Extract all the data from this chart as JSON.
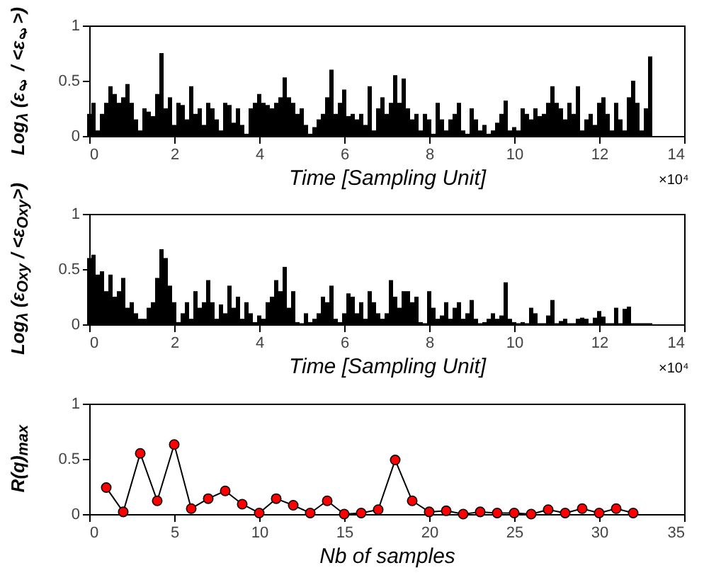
{
  "chart_data": [
    {
      "type": "bar",
      "xlabel": "Time [Sampling Unit]",
      "ylabel": "Log$_{λ}$ (ε$_{ℓ}$ / <ε$_{ℓ}$>)",
      "annotations": [
        "×10⁴"
      ],
      "xlim": [
        0,
        14
      ],
      "xticks": [
        0,
        2,
        4,
        6,
        8,
        10,
        12,
        14
      ],
      "ylim": [
        0,
        1
      ],
      "yticks": [
        0,
        0.5,
        1
      ],
      "grid": false,
      "x": [
        0,
        0.1,
        0.2,
        0.3,
        0.4,
        0.5,
        0.6,
        0.7,
        0.8,
        0.9,
        1,
        1.1,
        1.2,
        1.3,
        1.4,
        1.5,
        1.6,
        1.7,
        1.8,
        1.9,
        2,
        2.1,
        2.2,
        2.3,
        2.4,
        2.5,
        2.6,
        2.7,
        2.8,
        2.9,
        3,
        3.1,
        3.2,
        3.3,
        3.4,
        3.5,
        3.6,
        3.7,
        3.8,
        3.9,
        4,
        4.1,
        4.2,
        4.3,
        4.4,
        4.5,
        4.6,
        4.7,
        4.8,
        4.9,
        5,
        5.1,
        5.2,
        5.3,
        5.4,
        5.5,
        5.6,
        5.7,
        5.8,
        5.9,
        6,
        6.1,
        6.2,
        6.3,
        6.4,
        6.5,
        6.6,
        6.7,
        6.8,
        6.9,
        7,
        7.1,
        7.2,
        7.3,
        7.4,
        7.5,
        7.6,
        7.7,
        7.8,
        7.9,
        8,
        8.1,
        8.2,
        8.3,
        8.4,
        8.5,
        8.6,
        8.7,
        8.8,
        8.9,
        9,
        9.1,
        9.2,
        9.3,
        9.4,
        9.5,
        9.6,
        9.7,
        9.8,
        9.9,
        10,
        10.1,
        10.2,
        10.3,
        10.4,
        10.5,
        10.6,
        10.7,
        10.8,
        10.9,
        11,
        11.1,
        11.2,
        11.3,
        11.4,
        11.5,
        11.6,
        11.7,
        11.8,
        11.9,
        12,
        12.1,
        12.2,
        12.3,
        12.4,
        12.5,
        12.6,
        12.7,
        12.8,
        12.9,
        13,
        13.1,
        13.2
      ],
      "series": [
        {
          "color": "#000000",
          "values": [
            0.2,
            0.3,
            0.05,
            0.2,
            0.3,
            0.45,
            0.38,
            0.3,
            0.35,
            0.47,
            0.3,
            0.15,
            0.05,
            0.25,
            0.22,
            0.18,
            0.38,
            0.75,
            0.25,
            0.35,
            0.1,
            0.3,
            0.28,
            0.15,
            0.45,
            0.2,
            0.25,
            0.1,
            0.3,
            0.25,
            0.15,
            0.05,
            0.3,
            0.28,
            0.12,
            0.25,
            0.1,
            0.02,
            0.25,
            0.3,
            0.38,
            0.3,
            0.28,
            0.25,
            0.3,
            0.35,
            0.53,
            0.35,
            0.3,
            0.2,
            0.25,
            0.1,
            0.02,
            0.08,
            0.15,
            0.2,
            0.35,
            0.6,
            0.2,
            0.3,
            0.42,
            0.18,
            0.2,
            0.15,
            0.2,
            0.1,
            0.45,
            0.05,
            0.25,
            0.35,
            0.2,
            0.3,
            0.55,
            0.3,
            0.52,
            0.25,
            0.15,
            0.2,
            0.05,
            0.2,
            0.15,
            0.02,
            0.3,
            0.15,
            0.05,
            0.15,
            0.2,
            0.3,
            0.05,
            0.02,
            0.25,
            0.15,
            0.05,
            0.1,
            0.02,
            0.05,
            0.12,
            0.2,
            0.32,
            0.05,
            0.08,
            0.05,
            0.25,
            0.2,
            0.15,
            0.25,
            0.18,
            0.2,
            0.3,
            0.45,
            0.3,
            0.25,
            0.15,
            0.3,
            0.2,
            0.45,
            0.05,
            0.15,
            0.2,
            0.1,
            0.3,
            0.35,
            0.2,
            0.05,
            0.3,
            0.15,
            0.05,
            0.35,
            0.5,
            0.3,
            0.05,
            0.25,
            0.72
          ]
        }
      ]
    },
    {
      "type": "bar",
      "xlabel": "Time [Sampling Unit]",
      "ylabel": "Log$_{λ}$ (ε$_{Oxy}$ / <ε$_{Oxy}$>)",
      "annotations": [
        "×10⁴"
      ],
      "xlim": [
        0,
        14
      ],
      "xticks": [
        0,
        2,
        4,
        6,
        8,
        10,
        12,
        14
      ],
      "ylim": [
        0,
        1
      ],
      "yticks": [
        0,
        0.5,
        1
      ],
      "grid": false,
      "x": [
        0,
        0.1,
        0.2,
        0.3,
        0.4,
        0.5,
        0.6,
        0.7,
        0.8,
        0.9,
        1,
        1.1,
        1.2,
        1.3,
        1.4,
        1.5,
        1.6,
        1.7,
        1.8,
        1.9,
        2,
        2.1,
        2.2,
        2.3,
        2.4,
        2.5,
        2.6,
        2.7,
        2.8,
        2.9,
        3,
        3.1,
        3.2,
        3.3,
        3.4,
        3.5,
        3.6,
        3.7,
        3.8,
        3.9,
        4,
        4.1,
        4.2,
        4.3,
        4.4,
        4.5,
        4.6,
        4.7,
        4.8,
        4.9,
        5,
        5.1,
        5.2,
        5.3,
        5.4,
        5.5,
        5.6,
        5.7,
        5.8,
        5.9,
        6,
        6.1,
        6.2,
        6.3,
        6.4,
        6.5,
        6.6,
        6.7,
        6.8,
        6.9,
        7,
        7.1,
        7.2,
        7.3,
        7.4,
        7.5,
        7.6,
        7.7,
        7.8,
        7.9,
        8,
        8.1,
        8.2,
        8.3,
        8.4,
        8.5,
        8.6,
        8.7,
        8.8,
        8.9,
        9,
        9.1,
        9.2,
        9.3,
        9.4,
        9.5,
        9.6,
        9.7,
        9.8,
        9.9,
        10,
        10.1,
        10.2,
        10.3,
        10.4,
        10.5,
        10.6,
        10.7,
        10.8,
        10.9,
        11,
        11.1,
        11.2,
        11.3,
        11.4,
        11.5,
        11.6,
        11.7,
        11.8,
        11.9,
        12,
        12.1,
        12.2,
        12.3,
        12.4,
        12.5,
        12.6,
        12.7,
        12.8,
        12.9,
        13,
        13.1,
        13.2
      ],
      "series": [
        {
          "color": "#000000",
          "values": [
            0.6,
            0.63,
            0.45,
            0.48,
            0.3,
            0.45,
            0.25,
            0.3,
            0.42,
            0.15,
            0.2,
            0.1,
            0.05,
            0.05,
            0.15,
            0.2,
            0.42,
            0.68,
            0.6,
            0.35,
            0.2,
            0.02,
            0.1,
            0.2,
            0.05,
            0.3,
            0.15,
            0.2,
            0.4,
            0.2,
            0.05,
            0.18,
            0.1,
            0.35,
            0.15,
            0.25,
            0.05,
            0.2,
            0.1,
            0.02,
            0.08,
            0.05,
            0.2,
            0.25,
            0.4,
            0.3,
            0.52,
            0.15,
            0.3,
            0.02,
            0.01,
            0.1,
            0.02,
            0.05,
            0.1,
            0.25,
            0.2,
            0.35,
            0.05,
            0.02,
            0.1,
            0.28,
            0.25,
            0.1,
            0.2,
            0.05,
            0.3,
            0.2,
            0.1,
            0.05,
            0.1,
            0.4,
            0.25,
            0.15,
            0.3,
            0.3,
            0.2,
            0.25,
            0.02,
            0.01,
            0.3,
            0.15,
            0.05,
            0.08,
            0.2,
            0.05,
            0.15,
            0.2,
            0.05,
            0.1,
            0.22,
            0.05,
            0.01,
            0.02,
            0.05,
            0.1,
            0.05,
            0.08,
            0.38,
            0.05,
            0.02,
            0.01,
            0.02,
            0.01,
            0.15,
            0.1,
            0.01,
            0.01,
            0.08,
            0.22,
            0.01,
            0.03,
            0.05,
            0.01,
            0.01,
            0.05,
            0.06,
            0.05,
            0.01,
            0.06,
            0.12,
            0.07,
            0.01,
            0.01,
            0.15,
            0.01,
            0.14,
            0.16,
            0.01,
            0.01,
            0.01,
            0.01,
            0.01
          ]
        }
      ]
    },
    {
      "type": "line",
      "xlabel": "Nb of samples",
      "ylabel": "R(q)$_{max}$",
      "xlim": [
        0,
        35
      ],
      "xticks": [
        0,
        5,
        10,
        15,
        20,
        25,
        30,
        35
      ],
      "ylim": [
        0,
        1
      ],
      "yticks": [
        0,
        0.5,
        1
      ],
      "grid": false,
      "marker": "circle",
      "line_style": "solid",
      "x": [
        1,
        2,
        3,
        4,
        5,
        6,
        7,
        8,
        9,
        10,
        11,
        12,
        13,
        14,
        15,
        16,
        17,
        18,
        19,
        20,
        21,
        22,
        23,
        24,
        25,
        26,
        27,
        28,
        29,
        30,
        31,
        32
      ],
      "series": [
        {
          "color": "#ff0000",
          "values": [
            0.24,
            0.02,
            0.55,
            0.12,
            0.63,
            0.05,
            0.14,
            0.21,
            0.09,
            0.01,
            0.14,
            0.08,
            0.01,
            0.12,
            0,
            0.01,
            0.04,
            0.49,
            0.12,
            0.02,
            0.03,
            0,
            0.02,
            0.01,
            0.01,
            0,
            0.04,
            0.01,
            0.05,
            0.01,
            0.05,
            0.01
          ]
        }
      ]
    }
  ]
}
